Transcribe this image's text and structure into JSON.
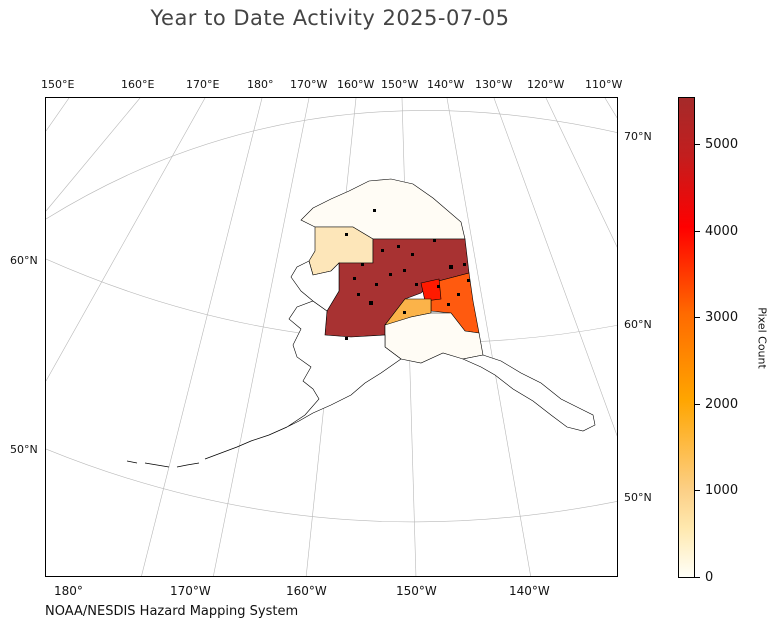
{
  "title": "Year to Date Activity 2025-07-05",
  "footer": "NOAA/NESDIS Hazard Mapping System",
  "map": {
    "region": "Alaska",
    "projection": "conic",
    "top_lon_labels": [
      "150°E",
      "160°E",
      "170°E",
      "180°",
      "170°W",
      "160°W",
      "150°W",
      "140°W",
      "130°W",
      "120°W",
      "110°W"
    ],
    "bottom_lon_labels": [
      "180°",
      "170°W",
      "160°W",
      "150°W",
      "140°W"
    ],
    "left_lat_labels": [
      "60°N",
      "50°N"
    ],
    "right_lat_labels": [
      "70°N",
      "60°N",
      "50°N"
    ],
    "zones": [
      {
        "name": "north-slope-white",
        "fill": "#fffcf5"
      },
      {
        "name": "northwest-pale",
        "fill": "#fde6b9"
      },
      {
        "name": "interior-dark-red",
        "fill": "#a83232"
      },
      {
        "name": "eastern-orange",
        "fill": "#ff5a0f"
      },
      {
        "name": "central-light-orange",
        "fill": "#fbb349"
      },
      {
        "name": "south-central-white",
        "fill": "#fffcf5"
      }
    ]
  },
  "colorbar": {
    "title": "Pixel Count",
    "min": 0,
    "max": 5500,
    "tick_values": [
      "0",
      "1000",
      "2000",
      "3000",
      "4000",
      "5000"
    ],
    "colors": [
      "#fffff8",
      "#fcd087",
      "#ffa500",
      "#ff6a00",
      "#ff0000",
      "#a52a2a"
    ]
  }
}
